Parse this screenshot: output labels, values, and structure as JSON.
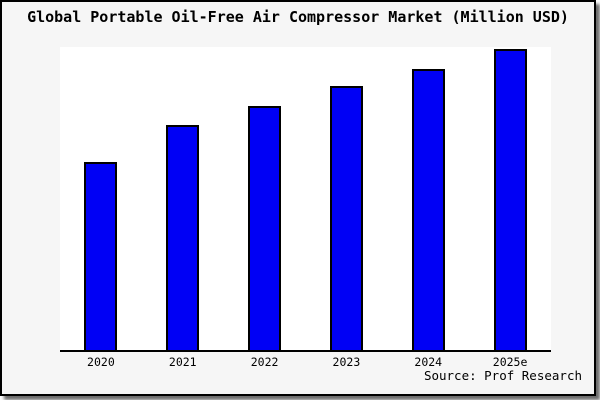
{
  "window": {
    "background": "#f6f6f6",
    "frame_border_color": "#000000",
    "shadow_color": "#6e6e6e"
  },
  "chart_data": {
    "type": "bar",
    "title": "Global Portable Oil-Free Air Compressor Market (Million USD)",
    "categories": [
      "2020",
      "2021",
      "2022",
      "2023",
      "2024",
      "2025e"
    ],
    "values": [
      188,
      225,
      244,
      264,
      281,
      301
    ],
    "value_note": "No numeric y-axis ticks or data labels are shown in the chart; values are relative bar heights measured in pixels (max bar = 301).",
    "xlabel": "",
    "ylabel": "",
    "ylim": [
      0,
      303
    ],
    "grid": false,
    "legend": "none",
    "plot_background": "#ffffff",
    "bar_color": "#0000f5",
    "bar_edge_color": "#000000",
    "axis_color": "#000000",
    "source": "Source: Prof Research"
  }
}
